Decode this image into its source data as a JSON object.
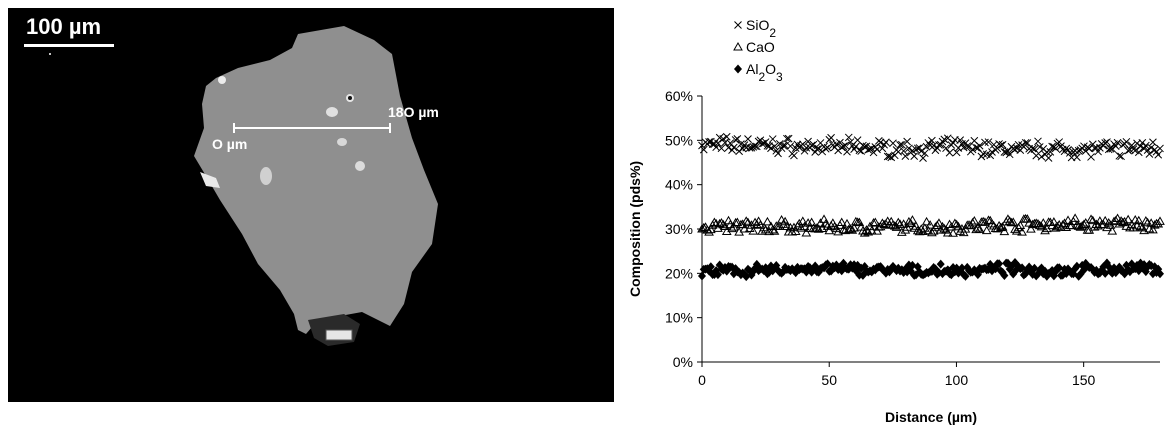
{
  "micrograph": {
    "scale_label": "100 µm",
    "profile_start_label": "O µm",
    "profile_end_label": "18O µm"
  },
  "chart_data": {
    "type": "scatter",
    "title": "",
    "xlabel": "Distance (µm)",
    "ylabel": "Composition (pds%)",
    "xlim": [
      0,
      180
    ],
    "ylim": [
      0,
      60
    ],
    "x_ticks": [
      0,
      50,
      100,
      150
    ],
    "x_tick_labels": [
      "0",
      "50",
      "100",
      "150"
    ],
    "y_ticks": [
      0,
      10,
      20,
      30,
      40,
      50,
      60
    ],
    "y_tick_labels": [
      "0%",
      "10%",
      "20%",
      "30%",
      "40%",
      "50%",
      "60%"
    ],
    "grid": false,
    "legend_position": "top-left",
    "series": [
      {
        "name": "SiO₂",
        "legend_label": "SiO2",
        "marker": "x",
        "color": "#000000",
        "x": [
          0,
          20,
          40,
          60,
          80,
          100,
          120,
          140,
          160,
          180
        ],
        "values": [
          49,
          49,
          48.5,
          48.5,
          48,
          48.5,
          48,
          48,
          48,
          48.5
        ]
      },
      {
        "name": "CaO",
        "legend_label": "CaO",
        "marker": "triangle-open",
        "color": "#000000",
        "x": [
          0,
          20,
          40,
          60,
          80,
          100,
          120,
          140,
          160,
          180
        ],
        "values": [
          30.5,
          30.5,
          30.5,
          30.5,
          30.5,
          30.5,
          31,
          31,
          31,
          31
        ]
      },
      {
        "name": "Al₂O₃",
        "legend_label": "Al2O3",
        "marker": "diamond-filled",
        "color": "#000000",
        "x": [
          0,
          20,
          40,
          60,
          80,
          100,
          120,
          140,
          160,
          180
        ],
        "values": [
          20.5,
          20.5,
          21,
          21,
          20.5,
          20.5,
          21,
          20.5,
          21,
          21
        ]
      }
    ]
  }
}
